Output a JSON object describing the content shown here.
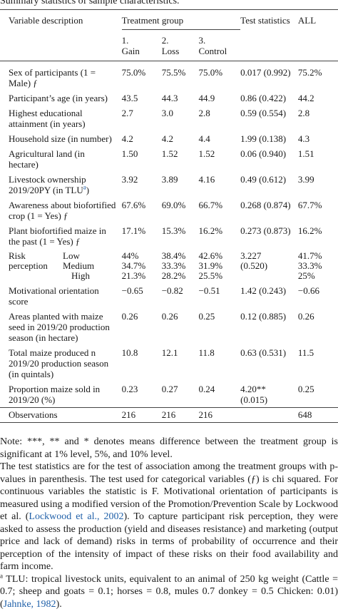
{
  "caption": "Summary statistics of sample characteristics.",
  "header": {
    "variable": "Variable description",
    "treatment_group": "Treatment group",
    "test_statistics": "Test statistics",
    "all": "ALL",
    "groups": [
      {
        "num": "1.",
        "name": "Gain"
      },
      {
        "num": "2.",
        "name": "Loss"
      },
      {
        "num": "3.",
        "name": "Control"
      }
    ]
  },
  "rows": [
    {
      "label": "Sex of participants (1 = Male) ƒ",
      "gain": "75.0%",
      "loss": "75.5%",
      "control": "75.0%",
      "test": "0.017 (0.992)",
      "all": "75.2%"
    },
    {
      "label": "Participant’s age (in years)",
      "gain": "43.5",
      "loss": "44.3",
      "control": "44.9",
      "test": "0.86 (0.422)",
      "all": "44.2"
    },
    {
      "label": "Highest educational attainment (in years)",
      "gain": "2.7",
      "loss": "3.0",
      "control": "2.8",
      "test": "0.59 (0.554)",
      "all": "2.8"
    },
    {
      "label": "Household size (in number)",
      "gain": "4.2",
      "loss": "4.2",
      "control": "4.4",
      "test": "1.99 (0.138)",
      "all": "4.3"
    },
    {
      "label": "Agricultural land (in hectare)",
      "gain": "1.50",
      "loss": "1.52",
      "control": "1.52",
      "test": "0.06 (0.940)",
      "all": "1.51"
    },
    {
      "label": "Livestock ownership 2019/20PY (in TLU",
      "label_sup": "a",
      "label_end": ")",
      "gain": "3.92",
      "loss": "3.89",
      "control": "4.16",
      "test": "0.49 (0.612)",
      "all": "3.99"
    },
    {
      "label": "Awareness about biofortified crop (1 = Yes) ƒ",
      "gain": "67.6%",
      "loss": "69.0%",
      "control": "66.7%",
      "test": "0.268 (0.874)",
      "all": "67.7%"
    },
    {
      "label": "Plant biofortified maize in the past (1 = Yes) ƒ",
      "gain": "17.1%",
      "loss": "15.3%",
      "control": "16.2%",
      "test": "0.273 (0.873)",
      "all": "16.2%"
    }
  ],
  "risk": {
    "label_top": "Risk",
    "label_bottom": "perception",
    "levels": [
      {
        "level": "Low",
        "gain": "44%",
        "loss": "38.4%",
        "control": "42.6%",
        "test": "3.227",
        "all": "41.7%"
      },
      {
        "level": "Medium",
        "gain": "34.7%",
        "loss": "33.3%",
        "control": "31.9%",
        "test": "(0.520)",
        "all": "33.3%"
      },
      {
        "level": "High",
        "gain": "21.3%",
        "loss": "28.2%",
        "control": "25.5%",
        "test": "",
        "all": "25%"
      }
    ]
  },
  "rows2": [
    {
      "label": "Motivational orientation score",
      "gain": "−0.65",
      "loss": "−0.82",
      "control": "−0.51",
      "test": "1.42 (0.243)",
      "all": "−0.66"
    },
    {
      "label": "Areas planted with maize seed in 2019/20 production season (in hectare)",
      "gain": "0.26",
      "loss": "0.26",
      "control": "0.25",
      "test": "0.12 (0.885)",
      "all": "0.26"
    },
    {
      "label": "Total maize produced n 2019/20 production season (in quintals)",
      "gain": "10.8",
      "loss": "12.1",
      "control": "11.8",
      "test": "0.63 (0.531)",
      "all": "11.5"
    },
    {
      "label": "Proportion maize sold in 2019/20 (%)",
      "gain": "0.23",
      "loss": "0.27",
      "control": "0.24",
      "test": "4.20** (0.015)",
      "all": "0.25"
    }
  ],
  "observations": {
    "label": "Observations",
    "gain": "216",
    "loss": "216",
    "control": "216",
    "test": "",
    "all": "648"
  },
  "notes": {
    "n1": "Note: ***, ** and * denotes means difference between the treatment group is significant at 1% level, 5%, and 10% level.",
    "n2_pre": "The test statistics are for the test of association among the treatment groups with p-values in parenthesis. The test used for categorical variables (ƒ) is chi squared. For continuous variables the statistic is F. Motivational orientation of participants is measured using a modified version of the Promotion/Prevention Scale by Lockwood et al. (",
    "n2_link": "Lockwood et al., 2002",
    "n2_post": "). To capture participant risk perception, they were asked to assess the production (yield and diseases resistance) and marketing (output price and lack of demand) risks in terms of probability of occurrence and their perception of the intensity of impact of these risks on their food availability and farm income.",
    "n3_sup": "a",
    "n3_pre": " TLU: tropical livestock units, equivalent to an animal of 250 kg weight (Cattle = 0.7; sheep and goats = 0.1; horses = 0.8, mules 0.7 donkey = 0.5 Chicken: 0.01) (",
    "n3_link": "Jahnke, 1982",
    "n3_post": ")."
  }
}
